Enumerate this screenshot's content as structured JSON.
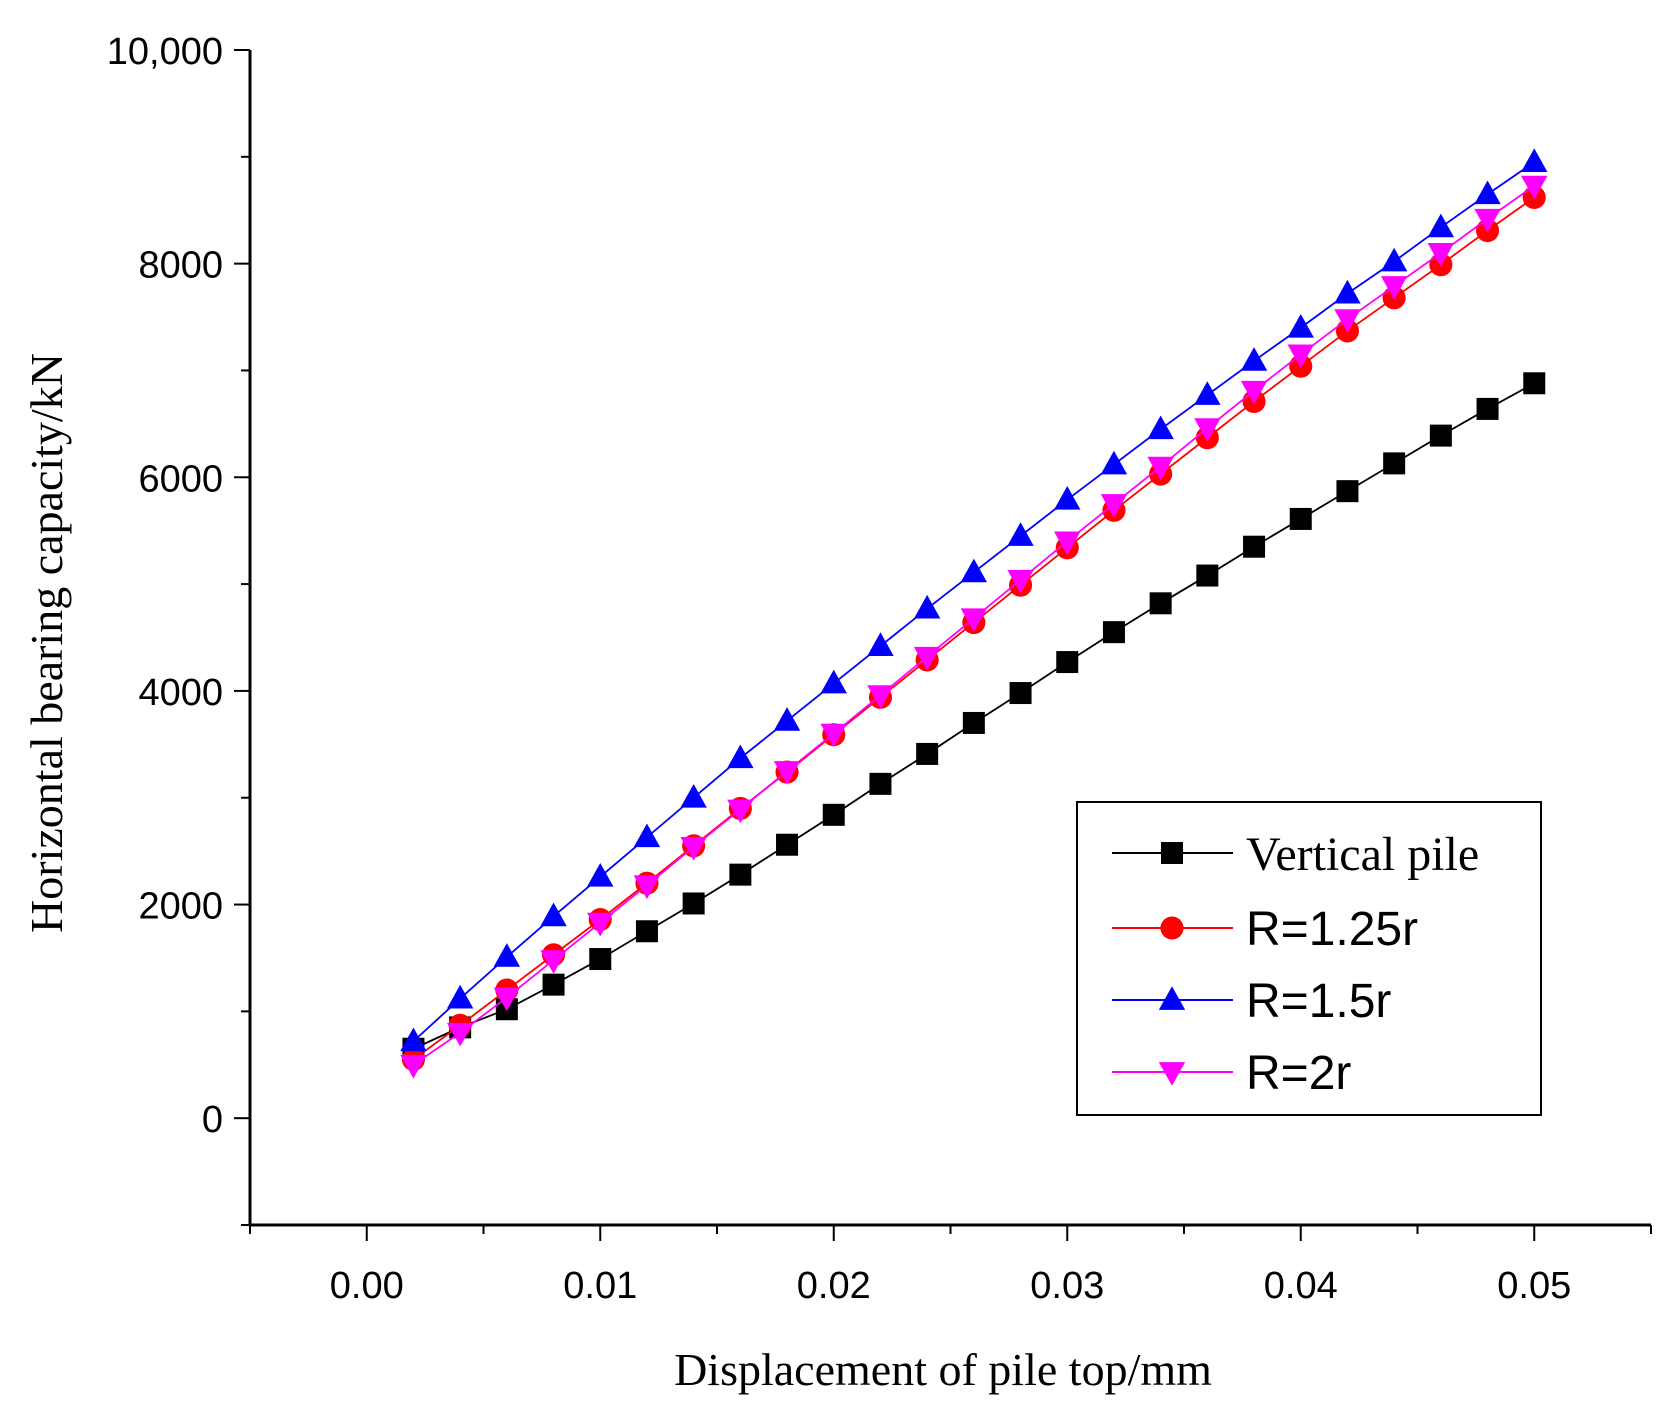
{
  "chart_data": {
    "type": "line",
    "title": "",
    "xlabel": "Displacement of pile top/mm",
    "ylabel": "Horizontal bearing capacity/kN",
    "xlim": [
      -0.005,
      0.055
    ],
    "ylim": [
      -1000,
      10000
    ],
    "xticks": [
      0.0,
      0.01,
      0.02,
      0.03,
      0.04,
      0.05
    ],
    "xtick_labels": [
      "0.00",
      "0.01",
      "0.02",
      "0.03",
      "0.04",
      "0.05"
    ],
    "yticks": [
      0,
      2000,
      4000,
      6000,
      8000,
      10000
    ],
    "ytick_labels": [
      "0",
      "2000",
      "4000",
      "6000",
      "8000",
      "10,000"
    ],
    "grid": false,
    "legend_position": "lower-right",
    "x": [
      0.002,
      0.004,
      0.006,
      0.008,
      0.01,
      0.012,
      0.014,
      0.016,
      0.018,
      0.02,
      0.022,
      0.024,
      0.026,
      0.028,
      0.03,
      0.032,
      0.034,
      0.036,
      0.038,
      0.04,
      0.042,
      0.044,
      0.046,
      0.048,
      0.05
    ],
    "series": [
      {
        "name": "Vertical pile",
        "color": "#000000",
        "marker": "square",
        "values": [
          650,
          850,
          1020,
          1250,
          1490,
          1750,
          2010,
          2280,
          2560,
          2840,
          3130,
          3410,
          3700,
          3980,
          4270,
          4550,
          4820,
          5080,
          5350,
          5610,
          5870,
          6130,
          6390,
          6640,
          6880
        ]
      },
      {
        "name": "R=1.25r",
        "color": "#ff0000",
        "marker": "circle",
        "values": [
          550,
          870,
          1200,
          1530,
          1860,
          2200,
          2550,
          2900,
          3240,
          3590,
          3940,
          4290,
          4640,
          4990,
          5340,
          5690,
          6030,
          6370,
          6710,
          7040,
          7370,
          7680,
          7990,
          8310,
          8620
        ]
      },
      {
        "name": "R=1.5r",
        "color": "#0000ff",
        "marker": "triangle-up",
        "values": [
          720,
          1120,
          1510,
          1890,
          2260,
          2630,
          3000,
          3370,
          3720,
          4070,
          4420,
          4770,
          5110,
          5450,
          5790,
          6120,
          6450,
          6770,
          7090,
          7400,
          7720,
          8020,
          8340,
          8650,
          8950
        ]
      },
      {
        "name": "R=2r",
        "color": "#ff00ff",
        "marker": "triangle-down",
        "values": [
          500,
          800,
          1130,
          1480,
          1830,
          2180,
          2540,
          2890,
          3250,
          3600,
          3960,
          4320,
          4680,
          5040,
          5400,
          5750,
          6100,
          6460,
          6810,
          7150,
          7480,
          7790,
          8100,
          8420,
          8730
        ]
      }
    ]
  }
}
